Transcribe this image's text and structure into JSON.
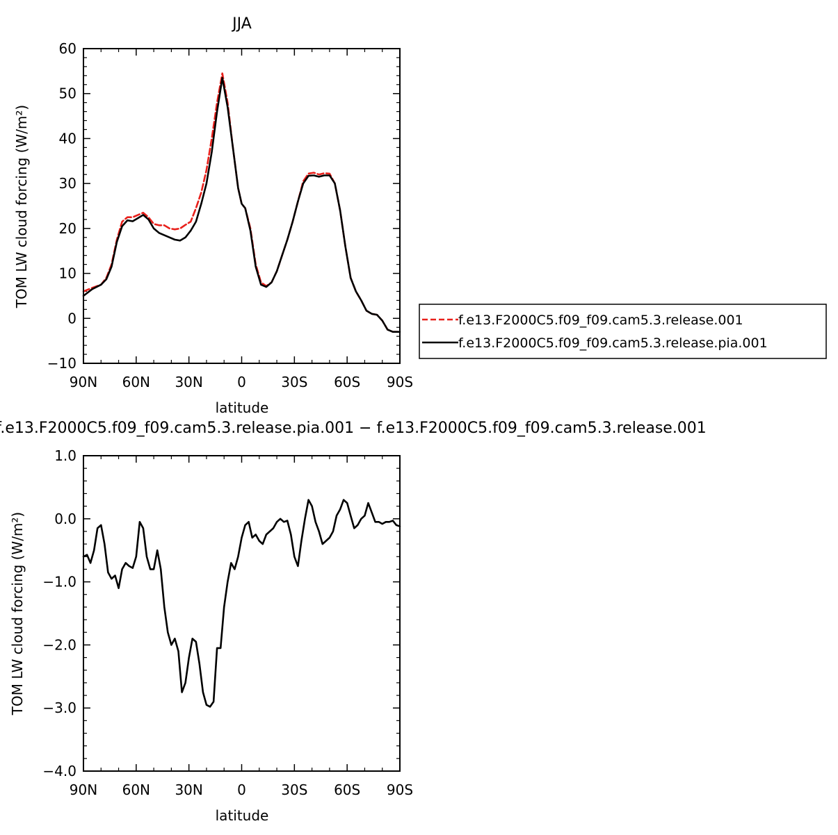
{
  "chart_data": [
    {
      "type": "line",
      "title": "JJA",
      "xlabel": "latitude",
      "ylabel": "TOM LW cloud forcing (W/m²)",
      "xlim": [
        90,
        -90
      ],
      "ylim": [
        -10,
        60
      ],
      "x_ticks": [
        90,
        60,
        30,
        0,
        -30,
        -60,
        -90
      ],
      "x_tick_labels": [
        "90N",
        "60N",
        "30N",
        "0",
        "30S",
        "60S",
        "90S"
      ],
      "y_ticks": [
        -10,
        0,
        10,
        20,
        30,
        40,
        50,
        60
      ],
      "y_tick_labels": [
        "−10",
        "0",
        "10",
        "20",
        "30",
        "40",
        "50",
        "60"
      ],
      "legend_position": "right",
      "series": [
        {
          "name": "f.e13.F2000C5.f09_f09.cam5.3.release.001",
          "color": "#e8201b",
          "style": "dashed",
          "x": [
            90,
            85,
            80,
            77,
            74,
            71,
            68,
            65,
            62,
            59,
            56,
            53,
            50,
            47,
            44,
            41,
            38,
            35,
            32,
            29,
            26,
            23,
            20,
            17,
            14,
            11,
            8,
            5,
            2,
            0,
            -2,
            -5,
            -8,
            -11,
            -14,
            -17,
            -20,
            -23,
            -26,
            -29,
            -32,
            -35,
            -38,
            -41,
            -44,
            -47,
            -50,
            -53,
            -56,
            -59,
            -62,
            -65,
            -68,
            -71,
            -74,
            -77,
            -80,
            -83,
            -86,
            -88,
            -90
          ],
          "y": [
            6.0,
            6.8,
            7.5,
            9.0,
            12.0,
            17.5,
            21.5,
            22.5,
            22.5,
            23.0,
            23.5,
            22.5,
            21.0,
            20.7,
            20.7,
            20.0,
            19.8,
            20.0,
            20.8,
            21.5,
            24.5,
            28.0,
            33.0,
            40.0,
            48.0,
            54.5,
            48.0,
            38.0,
            29.0,
            25.5,
            24.5,
            20.0,
            12.0,
            8.0,
            7.2,
            8.0,
            10.5,
            14.0,
            17.5,
            21.5,
            26.0,
            30.5,
            32.2,
            32.4,
            32.0,
            32.3,
            32.2,
            30.0,
            24.0,
            16.0,
            9.0,
            6.0,
            4.0,
            1.7,
            1.0,
            0.8,
            -0.5,
            -2.5,
            -3.0,
            -3.0,
            -3.0
          ]
        },
        {
          "name": "f.e13.F2000C5.f09_f09.cam5.3.release.pia.001",
          "color": "#000000",
          "style": "solid",
          "x": [
            90,
            85,
            80,
            77,
            74,
            71,
            68,
            65,
            62,
            59,
            56,
            53,
            50,
            47,
            44,
            41,
            38,
            35,
            32,
            29,
            26,
            23,
            20,
            17,
            14,
            11,
            8,
            5,
            2,
            0,
            -2,
            -5,
            -8,
            -11,
            -14,
            -17,
            -20,
            -23,
            -26,
            -29,
            -32,
            -35,
            -38,
            -41,
            -44,
            -47,
            -50,
            -53,
            -56,
            -59,
            -62,
            -65,
            -68,
            -71,
            -74,
            -77,
            -80,
            -83,
            -86,
            -88,
            -90
          ],
          "y": [
            5.0,
            6.5,
            7.5,
            8.7,
            11.5,
            17.0,
            20.5,
            21.8,
            21.6,
            22.3,
            23.0,
            22.0,
            20.0,
            19.0,
            18.5,
            18.0,
            17.5,
            17.3,
            18.0,
            19.5,
            21.5,
            25.5,
            30.0,
            37.0,
            46.0,
            53.5,
            47.0,
            38.0,
            29.0,
            25.5,
            24.5,
            19.5,
            11.5,
            7.5,
            7.0,
            8.0,
            10.5,
            14.0,
            17.5,
            21.5,
            26.0,
            30.0,
            31.7,
            31.8,
            31.5,
            31.8,
            31.8,
            30.0,
            24.0,
            16.0,
            9.0,
            6.0,
            4.0,
            1.7,
            1.0,
            0.8,
            -0.5,
            -2.5,
            -3.0,
            -3.0,
            -3.0
          ]
        }
      ]
    },
    {
      "type": "line",
      "title": "f.e13.F2000C5.f09_f09.cam5.3.release.pia.001 − f.e13.F2000C5.f09_f09.cam5.3.release.001",
      "xlabel": "latitude",
      "ylabel": "TOM LW cloud forcing (W/m²)",
      "xlim": [
        90,
        -90
      ],
      "ylim": [
        -4.0,
        1.0
      ],
      "x_ticks": [
        90,
        60,
        30,
        0,
        -30,
        -60,
        -90
      ],
      "x_tick_labels": [
        "90N",
        "60N",
        "30N",
        "0",
        "30S",
        "60S",
        "90S"
      ],
      "y_ticks": [
        -4,
        -3,
        -2,
        -1,
        0,
        1
      ],
      "y_tick_labels": [
        "−4.0",
        "−3.0",
        "−2.0",
        "−1.0",
        "0.0",
        "1.0"
      ],
      "series": [
        {
          "name": "f.e13.F2000C5.f09_f09.cam5.3.release.pia.001 − f.e13.F2000C5.f09_f09.cam5.3.release.001",
          "color": "#000000",
          "style": "solid",
          "x": [
            90,
            88,
            86,
            84,
            82,
            80,
            78,
            76,
            74,
            72,
            70,
            68,
            66,
            64,
            62,
            60,
            58,
            56,
            54,
            52,
            50,
            48,
            46,
            44,
            42,
            40,
            38,
            36,
            34,
            32,
            30,
            28,
            26,
            24,
            22,
            20,
            18,
            16,
            14,
            12,
            10,
            8,
            6,
            4,
            2,
            0,
            -2,
            -4,
            -6,
            -8,
            -10,
            -12,
            -14,
            -16,
            -18,
            -20,
            -22,
            -24,
            -26,
            -28,
            -30,
            -32,
            -34,
            -36,
            -38,
            -40,
            -42,
            -44,
            -46,
            -48,
            -50,
            -52,
            -54,
            -56,
            -58,
            -60,
            -62,
            -64,
            -66,
            -68,
            -70,
            -72,
            -74,
            -76,
            -78,
            -80,
            -82,
            -84,
            -86,
            -88,
            -90
          ],
          "y": [
            -0.6,
            -0.57,
            -0.7,
            -0.5,
            -0.15,
            -0.1,
            -0.4,
            -0.85,
            -0.95,
            -0.9,
            -1.1,
            -0.8,
            -0.7,
            -0.75,
            -0.78,
            -0.6,
            -0.05,
            -0.15,
            -0.6,
            -0.8,
            -0.8,
            -0.5,
            -0.8,
            -1.4,
            -1.8,
            -2.0,
            -1.9,
            -2.1,
            -2.75,
            -2.6,
            -2.2,
            -1.9,
            -1.95,
            -2.3,
            -2.75,
            -2.95,
            -2.98,
            -2.9,
            -2.05,
            -2.05,
            -1.4,
            -1.0,
            -0.7,
            -0.8,
            -0.6,
            -0.3,
            -0.1,
            -0.05,
            -0.3,
            -0.25,
            -0.35,
            -0.4,
            -0.25,
            -0.2,
            -0.15,
            -0.05,
            0.0,
            -0.05,
            -0.03,
            -0.25,
            -0.6,
            -0.75,
            -0.35,
            0.0,
            0.3,
            0.2,
            -0.05,
            -0.2,
            -0.4,
            -0.35,
            -0.3,
            -0.2,
            0.05,
            0.15,
            0.3,
            0.25,
            0.05,
            -0.15,
            -0.1,
            0.0,
            0.05,
            0.25,
            0.1,
            -0.05,
            -0.05,
            -0.08,
            -0.05,
            -0.05,
            -0.03,
            -0.1,
            -0.12
          ]
        }
      ]
    }
  ]
}
